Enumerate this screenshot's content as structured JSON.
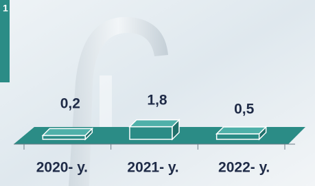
{
  "badge": "1",
  "chart_data": {
    "type": "bar3d",
    "categories": [
      "2020- у.",
      "2021- у.",
      "2022- у."
    ],
    "values": [
      0.2,
      1.8,
      0.5
    ],
    "value_labels": [
      "0,2",
      "1,8",
      "0,5"
    ],
    "color": "#2b8c86"
  }
}
